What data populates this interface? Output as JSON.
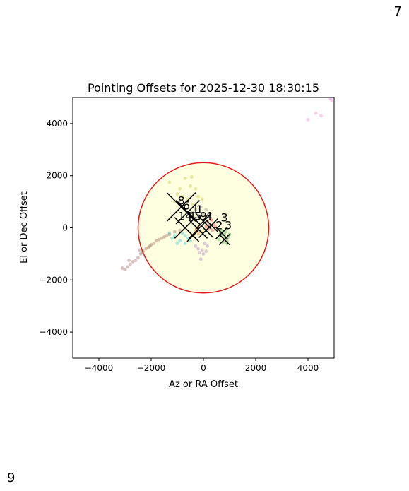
{
  "corner_labels": {
    "top_right": "7",
    "bottom_left": "9"
  },
  "chart_data": {
    "type": "scatter",
    "title": "Pointing Offsets for 2025-12-30 18:30:15",
    "xlabel": "Az or RA Offset",
    "ylabel": "El or Dec Offset",
    "xlim": [
      -5000,
      5000
    ],
    "ylim": [
      -5000,
      5000
    ],
    "xticks": [
      -4000,
      -2000,
      0,
      2000,
      4000
    ],
    "yticks": [
      -4000,
      -2000,
      0,
      2000,
      4000
    ],
    "xtick_labels": [
      "−4000",
      "−2000",
      "0",
      "2000",
      "4000"
    ],
    "ytick_labels": [
      "−4000",
      "−2000",
      "0",
      "2000",
      "4000"
    ],
    "grid": false,
    "circle": {
      "cx": 0,
      "cy": 0,
      "r": 2500,
      "edge_color": "#e31a1c",
      "fill_color": "#fefee0"
    },
    "series": [
      {
        "color": "#d62728",
        "points": [
          [
            150,
            250
          ],
          [
            300,
            300
          ],
          [
            250,
            100
          ],
          [
            400,
            150
          ],
          [
            200,
            -50
          ],
          [
            350,
            -100
          ],
          [
            100,
            50
          ],
          [
            450,
            50
          ]
        ]
      },
      {
        "color": "#8c564b",
        "points": [
          [
            -2900,
            -1500
          ],
          [
            -2800,
            -1400
          ],
          [
            -2600,
            -1250
          ],
          [
            -2500,
            -1150
          ],
          [
            -2400,
            -1000
          ],
          [
            -2300,
            -900
          ],
          [
            -2200,
            -800
          ],
          [
            -2100,
            -750
          ],
          [
            -2000,
            -650
          ],
          [
            -1900,
            -600
          ],
          [
            -1800,
            -500
          ],
          [
            -1700,
            -450
          ],
          [
            -1600,
            -400
          ],
          [
            -1500,
            -350
          ],
          [
            -1400,
            -300
          ],
          [
            -1300,
            -250
          ],
          [
            -1100,
            -150
          ],
          [
            -900,
            -100
          ],
          [
            -3000,
            -1600
          ],
          [
            -2700,
            -1300
          ],
          [
            -2450,
            -850
          ],
          [
            -2350,
            -950
          ],
          [
            -3100,
            -1550
          ],
          [
            -2850,
            -1250
          ],
          [
            -2050,
            -700
          ]
        ]
      },
      {
        "color": "#2ca02c",
        "points": [
          [
            700,
            -300
          ],
          [
            800,
            -400
          ],
          [
            900,
            -500
          ],
          [
            650,
            -200
          ],
          [
            850,
            -150
          ],
          [
            950,
            -350
          ],
          [
            750,
            -550
          ],
          [
            600,
            -450
          ],
          [
            1000,
            -250
          ],
          [
            700,
            -100
          ],
          [
            900,
            -600
          ],
          [
            800,
            -250
          ]
        ]
      },
      {
        "color": "#9467bd",
        "points": [
          [
            -200,
            -800
          ],
          [
            0,
            -1000
          ],
          [
            -100,
            -1200
          ],
          [
            100,
            -900
          ],
          [
            -300,
            -700
          ],
          [
            50,
            -600
          ],
          [
            150,
            -700
          ],
          [
            -50,
            -850
          ],
          [
            -150,
            -950
          ]
        ]
      },
      {
        "color": "#17becf",
        "points": [
          [
            -900,
            -500
          ],
          [
            -1100,
            -300
          ],
          [
            -700,
            -600
          ],
          [
            -800,
            -200
          ],
          [
            -1200,
            -400
          ],
          [
            -600,
            -400
          ],
          [
            -1000,
            -600
          ],
          [
            -500,
            -500
          ],
          [
            -1300,
            -200
          ],
          [
            -700,
            -300
          ]
        ]
      },
      {
        "color": "#ff7f0e",
        "points": [
          [
            -300,
            -100
          ],
          [
            -200,
            -200
          ],
          [
            -250,
            0
          ],
          [
            -100,
            -150
          ],
          [
            -350,
            -250
          ],
          [
            -150,
            50
          ]
        ]
      },
      {
        "color": "#bcbd22",
        "points": [
          [
            -700,
            1900
          ],
          [
            -500,
            1600
          ],
          [
            -300,
            1500
          ],
          [
            -800,
            1200
          ],
          [
            -1100,
            1000
          ],
          [
            -600,
            1100
          ],
          [
            -400,
            900
          ],
          [
            -900,
            1500
          ],
          [
            -200,
            1200
          ],
          [
            -1300,
            1750
          ],
          [
            -450,
            1950
          ],
          [
            -50,
            1100
          ],
          [
            -1000,
            1300
          ]
        ]
      },
      {
        "color": "#7f7f7f",
        "points": [
          [
            -300,
            700
          ],
          [
            -100,
            800
          ],
          [
            -400,
            600
          ],
          [
            0,
            500
          ],
          [
            -200,
            400
          ],
          [
            100,
            700
          ]
        ]
      },
      {
        "color": "#e377c2",
        "points": [
          [
            4000,
            4150
          ],
          [
            4300,
            4400
          ],
          [
            4500,
            4300
          ],
          [
            4850,
            4950
          ],
          [
            4900,
            4900
          ]
        ]
      }
    ],
    "markers": [
      {
        "label": "8",
        "x": -850,
        "y": 900
      },
      {
        "label": "6",
        "x": -650,
        "y": 700
      },
      {
        "label": "1",
        "x": -300,
        "y": 550
      },
      {
        "label": "1",
        "x": -150,
        "y": 550
      },
      {
        "label": "14",
        "x": -700,
        "y": 300
      },
      {
        "label": "4",
        "x": -450,
        "y": 300
      },
      {
        "label": "5",
        "x": -200,
        "y": 300
      },
      {
        "label": "9",
        "x": 0,
        "y": 300
      },
      {
        "label": "4",
        "x": 200,
        "y": 300
      },
      {
        "label": "3",
        "x": 800,
        "y": 250
      },
      {
        "label": "2",
        "x": 600,
        "y": -50
      },
      {
        "label": "3",
        "x": 950,
        "y": -50
      }
    ],
    "crosses": [
      {
        "x": -850,
        "y": 800,
        "size": 1100
      },
      {
        "x": -600,
        "y": 600,
        "size": 900
      },
      {
        "x": -700,
        "y": 0,
        "size": 800
      },
      {
        "x": -200,
        "y": -50,
        "size": 700
      },
      {
        "x": 0,
        "y": 250,
        "size": 600
      },
      {
        "x": 100,
        "y": -100,
        "size": 550
      },
      {
        "x": 300,
        "y": 100,
        "size": 500
      },
      {
        "x": 700,
        "y": -200,
        "size": 450
      },
      {
        "x": 800,
        "y": -450,
        "size": 400
      },
      {
        "x": -400,
        "y": -300,
        "size": 450
      }
    ]
  }
}
